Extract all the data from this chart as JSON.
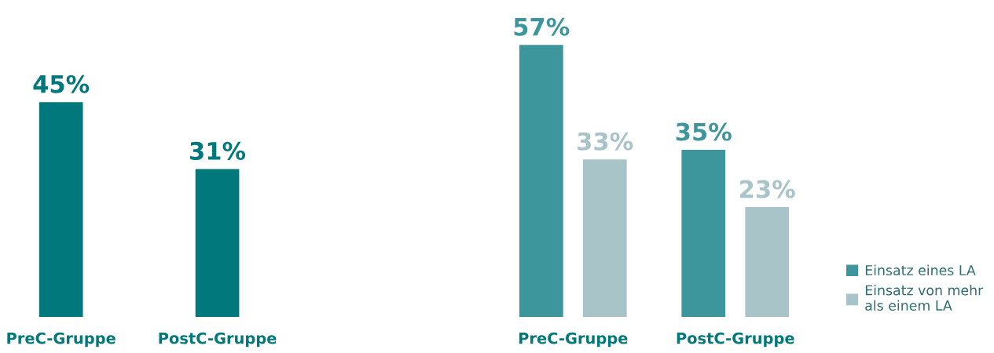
{
  "chart_data": [
    {
      "type": "bar",
      "categories": [
        "PreC-Gruppe",
        "PostC-Gruppe"
      ],
      "values": [
        45,
        31
      ],
      "color": "#00787c",
      "value_labels": [
        "45%",
        "31%"
      ],
      "tick_labels": "x",
      "grid": false,
      "legend": false
    },
    {
      "type": "bar",
      "categories": [
        "PreC-Gruppe",
        "PostC-Gruppe"
      ],
      "series": [
        {
          "name": "Einsatz eines LA",
          "color": "#3d969c",
          "values": [
            57,
            35
          ],
          "value_labels": [
            "57%",
            "35%"
          ]
        },
        {
          "name": "Einsatz von mehr\nals einem LA",
          "color": "#a8c4c9",
          "values": [
            33,
            23
          ],
          "value_labels": [
            "33%",
            "23%"
          ]
        }
      ],
      "tick_labels": "x",
      "grid": false,
      "legend": "bottom right"
    }
  ]
}
